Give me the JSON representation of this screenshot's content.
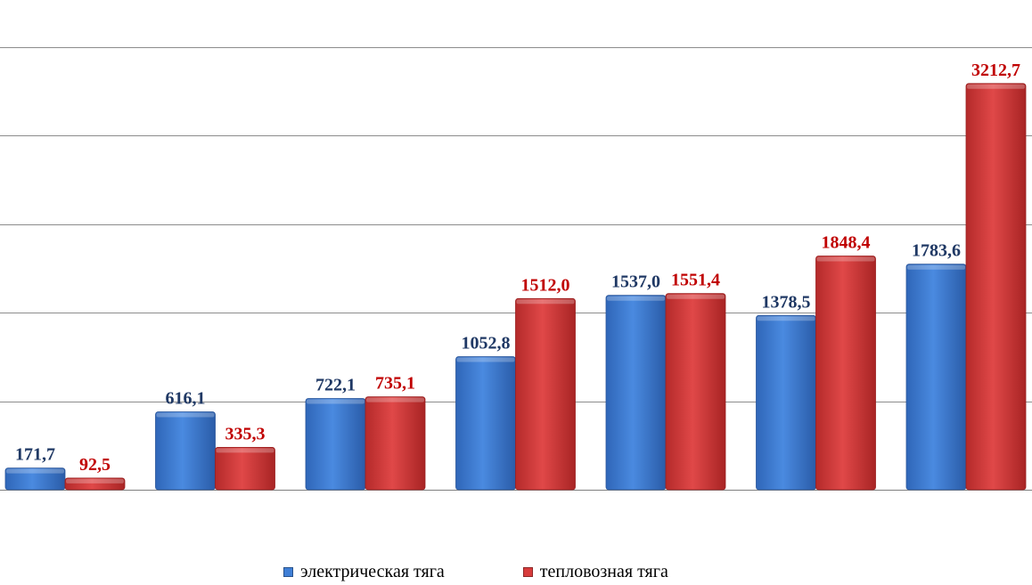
{
  "chart_data": {
    "type": "bar",
    "categories": [
      "",
      "",
      "",
      "",
      "",
      "",
      ""
    ],
    "series": [
      {
        "name": "электрическая тяга",
        "color": "#3f7fd6",
        "label_color": "#1f3864",
        "values": [
          171.7,
          616.1,
          722.1,
          1052.8,
          1537.0,
          1378.5,
          1783.6
        ],
        "labels": [
          "171,7",
          "616,1",
          "722,1",
          "1052,8",
          "1537,0",
          "1378,5",
          "1783,6"
        ]
      },
      {
        "name": "тепловозная тяга",
        "color": "#d83c3c",
        "label_color": "#c00000",
        "values": [
          92.5,
          335.3,
          735.1,
          1512.0,
          1551.4,
          1848.4,
          3212.7
        ],
        "labels": [
          "92,5",
          "335,3",
          "735,1",
          "1512,0",
          "1551,4",
          "1848,4",
          "3212,7"
        ]
      }
    ],
    "ylim": [
      0,
      3500
    ],
    "grid": true,
    "legend": "bottom"
  }
}
